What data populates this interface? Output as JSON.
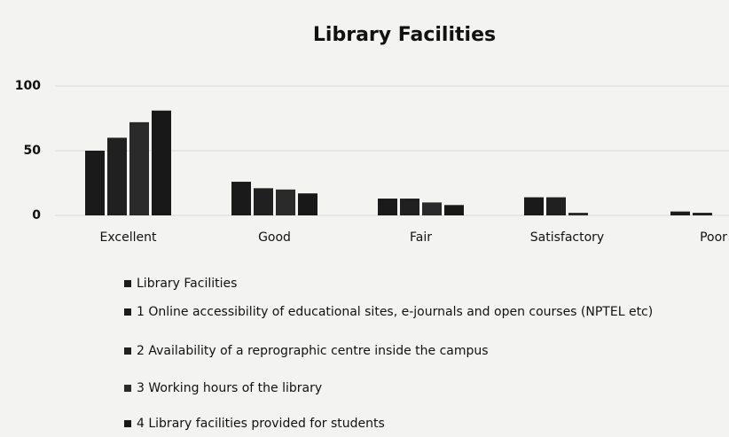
{
  "chart_data": {
    "type": "bar",
    "title": "Library Facilities",
    "categories": [
      "Excellent",
      "Good",
      "Fair",
      "Satisfactory",
      "Poor"
    ],
    "series": [
      {
        "name": "Library Facilities",
        "color": "#1c1c1c",
        "values": [
          null,
          null,
          null,
          null,
          null
        ]
      },
      {
        "name": "1 Online accessibility of educational sites, e-journals and open courses (NPTEL etc)",
        "color": "#1a1a1a",
        "values": [
          50,
          26,
          13,
          14,
          3
        ]
      },
      {
        "name": "2 Availability of a reprographic centre inside the campus",
        "color": "#202020",
        "values": [
          60,
          21,
          13,
          14,
          2
        ]
      },
      {
        "name": "3 Working hours of the library",
        "color": "#2a2a2a",
        "values": [
          72,
          20,
          10,
          2,
          0
        ]
      },
      {
        "name": "4 Library facilities provided for students",
        "color": "#181818",
        "values": [
          81,
          17,
          8,
          0,
          0
        ]
      }
    ],
    "ylim": [
      0,
      100
    ],
    "yticks": [
      0,
      50,
      100
    ],
    "grid": true
  }
}
